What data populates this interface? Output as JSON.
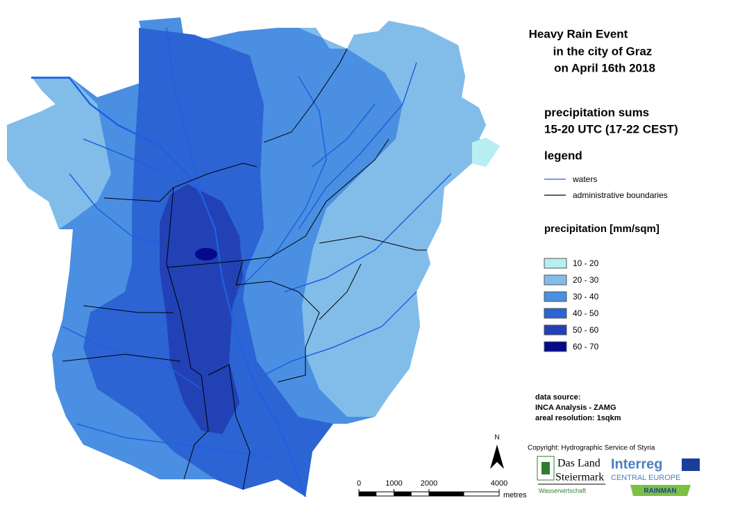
{
  "title": [
    "Heavy Rain Event",
    "in the city of Graz",
    "on April 16th 2018"
  ],
  "subtitle": [
    "precipitation sums",
    "15-20 UTC (17-22 CEST)"
  ],
  "legend": {
    "title": "legend",
    "items": [
      {
        "label": "waters",
        "color": "#1f5fe0"
      },
      {
        "label": "administrative boundaries",
        "color": "#000000"
      }
    ]
  },
  "precipitation": {
    "title": "precipitation [mm/sqm]",
    "classes": [
      {
        "label": "10 - 20",
        "color": "#b7eef2"
      },
      {
        "label": "20 - 30",
        "color": "#82bdea"
      },
      {
        "label": "30 - 40",
        "color": "#4a8fe2"
      },
      {
        "label": "40 - 50",
        "color": "#2c64d4"
      },
      {
        "label": "50 - 60",
        "color": "#2141b4"
      },
      {
        "label": "60 - 70",
        "color": "#050a8c"
      }
    ]
  },
  "data_source": [
    "data source:",
    "INCA Analysis - ZAMG",
    "areal resolution: 1sqkm"
  ],
  "scale": {
    "ticks": [
      0,
      1000,
      2000,
      4000
    ],
    "unit": "metres"
  },
  "north": "N",
  "copyright": "Copyright: Hydrographic Service of Styria",
  "logos": {
    "land": [
      "Das Land",
      "Steiermark"
    ],
    "water": "Wasserwirtschaft",
    "interreg": "Interreg",
    "programme": "CENTRAL EUROPE",
    "project": "RAINMAN"
  }
}
